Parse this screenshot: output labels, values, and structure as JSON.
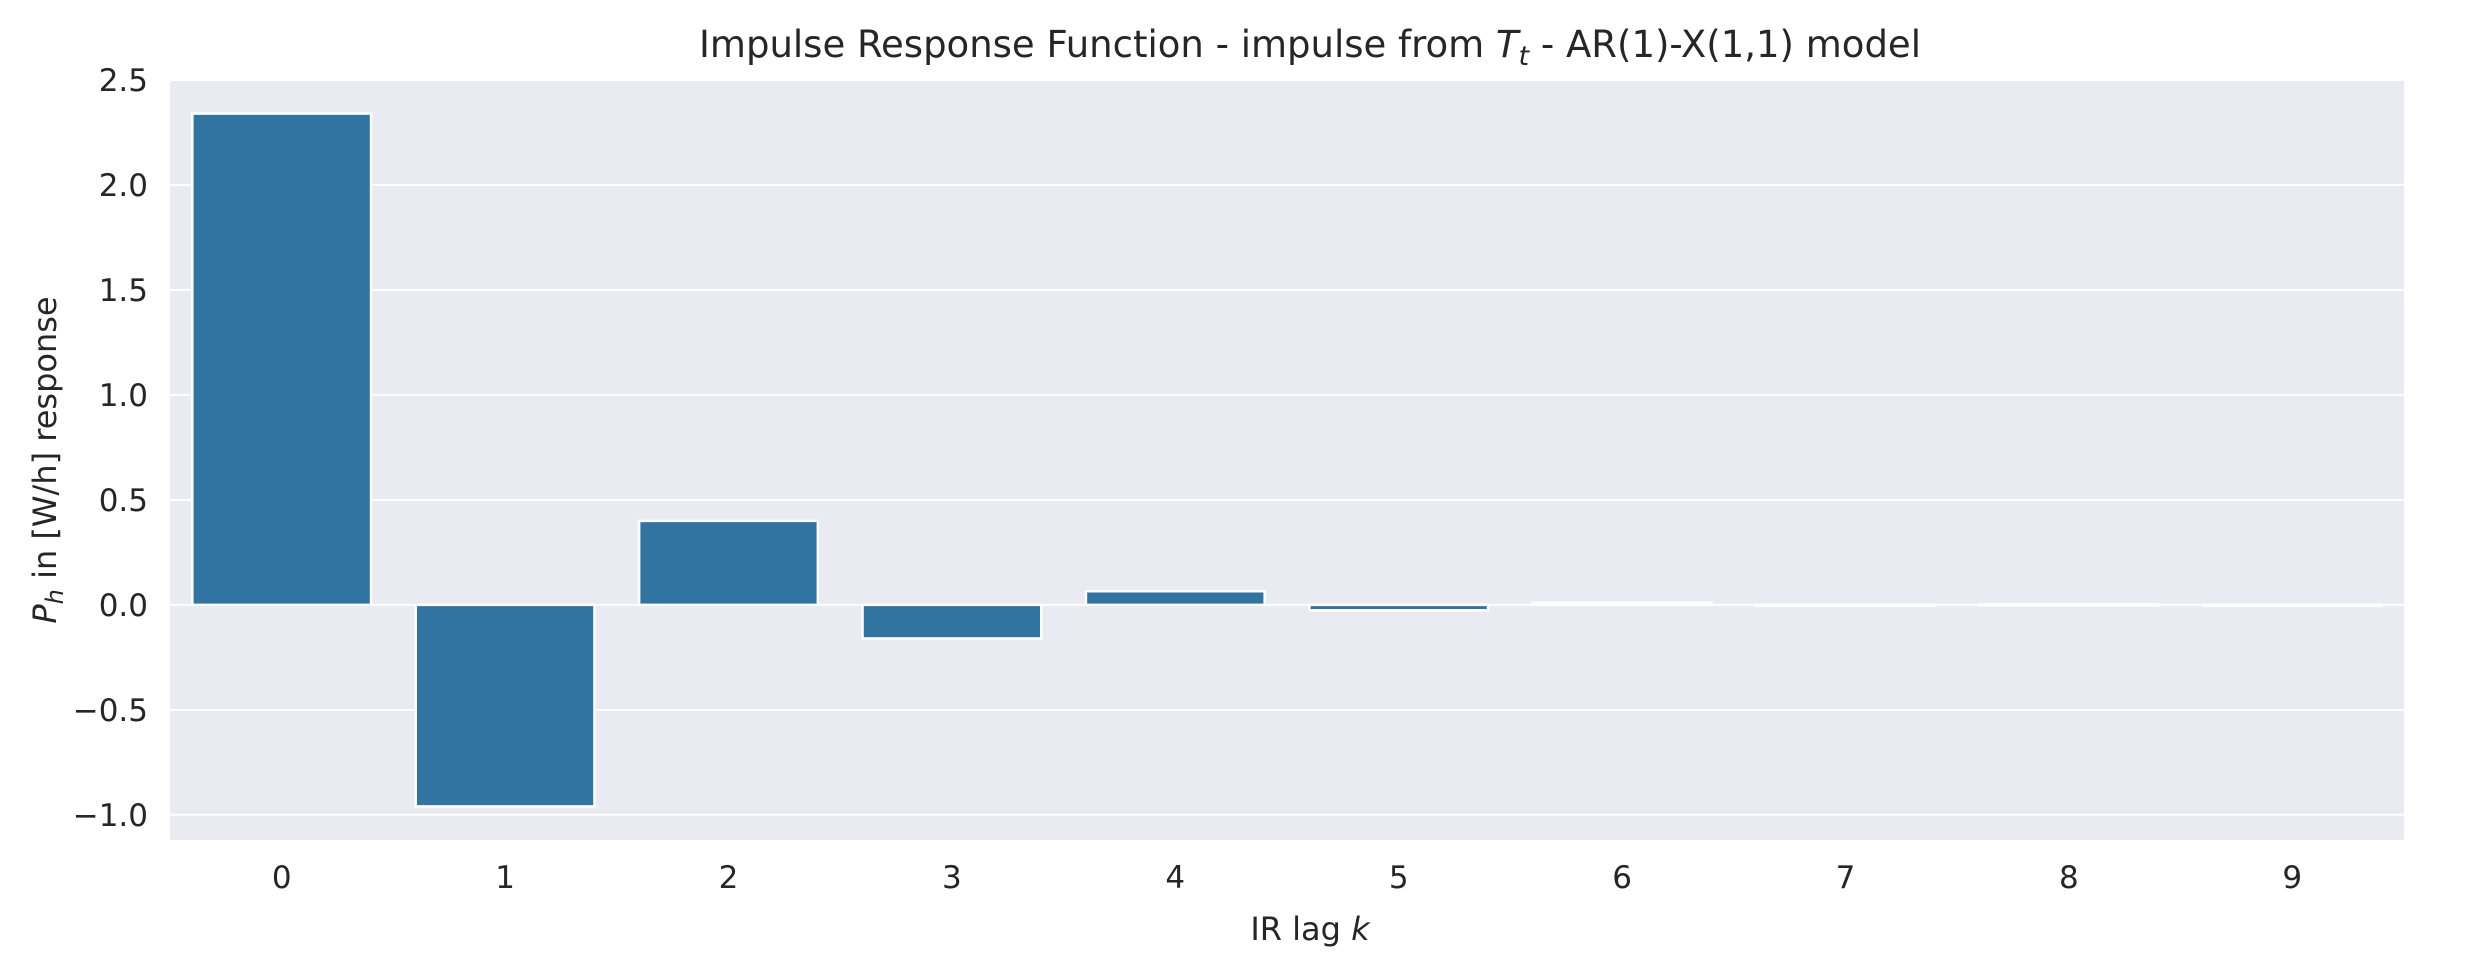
{
  "chart_data": {
    "type": "bar",
    "title": {
      "prefix": "Impulse Response Function - impulse from ",
      "symbol": "T",
      "subscript": "t",
      "suffix": " - AR(1)-X(1,1) model"
    },
    "xlabel": {
      "text": "IR lag ",
      "symbol": "k"
    },
    "ylabel": {
      "symbol": "P",
      "subscript": "h",
      "text": " in [W/h] response"
    },
    "categories": [
      "0",
      "1",
      "2",
      "3",
      "4",
      "5",
      "6",
      "7",
      "8",
      "9"
    ],
    "values": [
      2.34,
      -0.96,
      0.4,
      -0.16,
      0.065,
      -0.026,
      0.011,
      -0.004,
      0.002,
      -0.001
    ],
    "yticks": [
      -1.0,
      -0.5,
      0.0,
      0.5,
      1.0,
      1.5,
      2.0,
      2.5
    ],
    "ytick_labels": [
      "−1.0",
      "−0.5",
      "0.0",
      "0.5",
      "1.0",
      "1.5",
      "2.0",
      "2.5"
    ],
    "ylim": [
      -1.12,
      2.5
    ],
    "grid": true,
    "legend": "none",
    "colors": {
      "bar": "#3274a1",
      "plot_background": "#eaeaf2",
      "grid": "#ffffff",
      "text": "#262626"
    }
  }
}
